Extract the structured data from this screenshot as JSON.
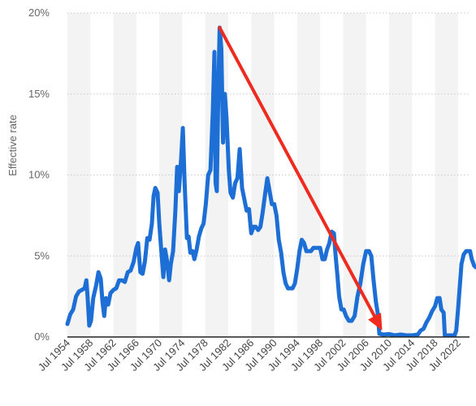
{
  "chart_data": {
    "type": "line",
    "title": "",
    "xlabel": "",
    "ylabel": "Effective rate",
    "ylim": [
      0,
      20
    ],
    "xlim": [
      1954.5,
      2024.5
    ],
    "y_ticks": [
      0,
      5,
      10,
      15,
      20
    ],
    "y_tick_labels": [
      "0%",
      "5%",
      "10%",
      "15%",
      "20%"
    ],
    "x_ticks": [
      1954.5,
      1958.5,
      1962.5,
      1966.5,
      1970.5,
      1974.5,
      1978.5,
      1982.5,
      1986.5,
      1990.5,
      1994.5,
      1998.5,
      2002.5,
      2006.5,
      2010.5,
      2014.5,
      2018.5,
      2022.5
    ],
    "x_tick_labels": [
      "Jul 1954",
      "Jul 1958",
      "Jul 1962",
      "Jul 1966",
      "Jul 1970",
      "Jul 1974",
      "Jul 1978",
      "Jul 1982",
      "Jul 1986",
      "Jul 1990",
      "Jul 1994",
      "Jul 1998",
      "Jul 2002",
      "Jul 2006",
      "Jul 2010",
      "Jul 2014",
      "Jul 2018",
      "Jul 2022"
    ],
    "grid": "horizontal dotted",
    "background": "alternating vertical bands",
    "series": [
      {
        "color": "#1d6fd6",
        "points": [
          [
            1954.5,
            0.8
          ],
          [
            1955.0,
            1.4
          ],
          [
            1955.5,
            1.7
          ],
          [
            1956.0,
            2.5
          ],
          [
            1956.5,
            2.8
          ],
          [
            1957.0,
            2.9
          ],
          [
            1957.5,
            3.0
          ],
          [
            1957.8,
            3.5
          ],
          [
            1958.0,
            2.5
          ],
          [
            1958.3,
            0.7
          ],
          [
            1958.6,
            1.0
          ],
          [
            1959.0,
            2.4
          ],
          [
            1959.5,
            3.2
          ],
          [
            1959.9,
            4.0
          ],
          [
            1960.3,
            3.6
          ],
          [
            1960.6,
            2.2
          ],
          [
            1960.9,
            1.3
          ],
          [
            1961.2,
            2.4
          ],
          [
            1961.6,
            2.0
          ],
          [
            1962.0,
            2.7
          ],
          [
            1962.5,
            2.9
          ],
          [
            1963.0,
            3.0
          ],
          [
            1963.5,
            3.5
          ],
          [
            1964.0,
            3.5
          ],
          [
            1964.5,
            3.4
          ],
          [
            1965.0,
            4.0
          ],
          [
            1965.5,
            4.1
          ],
          [
            1966.0,
            4.6
          ],
          [
            1966.5,
            5.5
          ],
          [
            1966.8,
            5.8
          ],
          [
            1967.2,
            4.0
          ],
          [
            1967.6,
            3.9
          ],
          [
            1968.0,
            4.7
          ],
          [
            1968.4,
            6.1
          ],
          [
            1968.8,
            6.0
          ],
          [
            1969.2,
            7.0
          ],
          [
            1969.5,
            8.7
          ],
          [
            1969.8,
            9.2
          ],
          [
            1970.2,
            8.9
          ],
          [
            1970.5,
            7.0
          ],
          [
            1970.8,
            5.5
          ],
          [
            1971.2,
            3.7
          ],
          [
            1971.5,
            5.4
          ],
          [
            1971.8,
            4.8
          ],
          [
            1972.2,
            3.5
          ],
          [
            1972.5,
            4.5
          ],
          [
            1972.9,
            5.3
          ],
          [
            1973.3,
            7.8
          ],
          [
            1973.6,
            10.5
          ],
          [
            1973.9,
            9.0
          ],
          [
            1974.3,
            11.0
          ],
          [
            1974.6,
            12.9
          ],
          [
            1974.9,
            9.5
          ],
          [
            1975.3,
            6.1
          ],
          [
            1975.6,
            6.2
          ],
          [
            1975.9,
            5.2
          ],
          [
            1976.3,
            5.3
          ],
          [
            1976.6,
            4.8
          ],
          [
            1977.0,
            5.4
          ],
          [
            1977.4,
            6.2
          ],
          [
            1977.8,
            6.7
          ],
          [
            1978.2,
            7.0
          ],
          [
            1978.6,
            8.2
          ],
          [
            1979.0,
            10.0
          ],
          [
            1979.4,
            10.3
          ],
          [
            1979.8,
            13.8
          ],
          [
            1980.1,
            17.6
          ],
          [
            1980.3,
            9.5
          ],
          [
            1980.5,
            9.0
          ],
          [
            1980.8,
            15.8
          ],
          [
            1981.0,
            19.1
          ],
          [
            1981.3,
            17.8
          ],
          [
            1981.6,
            12.0
          ],
          [
            1981.9,
            15.0
          ],
          [
            1982.2,
            13.5
          ],
          [
            1982.6,
            10.3
          ],
          [
            1982.9,
            8.9
          ],
          [
            1983.3,
            8.6
          ],
          [
            1983.7,
            9.5
          ],
          [
            1984.1,
            9.8
          ],
          [
            1984.5,
            11.6
          ],
          [
            1984.9,
            9.2
          ],
          [
            1985.3,
            8.5
          ],
          [
            1985.7,
            7.8
          ],
          [
            1986.1,
            7.9
          ],
          [
            1986.5,
            6.4
          ],
          [
            1986.9,
            6.8
          ],
          [
            1987.3,
            6.8
          ],
          [
            1987.7,
            6.6
          ],
          [
            1988.1,
            6.8
          ],
          [
            1988.5,
            7.7
          ],
          [
            1988.9,
            8.8
          ],
          [
            1989.3,
            9.8
          ],
          [
            1989.7,
            9.0
          ],
          [
            1990.1,
            8.2
          ],
          [
            1990.5,
            8.2
          ],
          [
            1990.9,
            7.5
          ],
          [
            1991.3,
            6.0
          ],
          [
            1991.7,
            5.2
          ],
          [
            1992.1,
            4.0
          ],
          [
            1992.5,
            3.3
          ],
          [
            1992.9,
            3.0
          ],
          [
            1993.3,
            3.0
          ],
          [
            1993.7,
            3.0
          ],
          [
            1994.1,
            3.3
          ],
          [
            1994.5,
            4.2
          ],
          [
            1994.9,
            5.3
          ],
          [
            1995.3,
            6.0
          ],
          [
            1995.7,
            5.8
          ],
          [
            1996.1,
            5.3
          ],
          [
            1996.5,
            5.3
          ],
          [
            1996.9,
            5.3
          ],
          [
            1997.3,
            5.5
          ],
          [
            1997.7,
            5.5
          ],
          [
            1998.1,
            5.5
          ],
          [
            1998.5,
            5.5
          ],
          [
            1998.9,
            4.8
          ],
          [
            1999.3,
            4.8
          ],
          [
            1999.7,
            5.4
          ],
          [
            2000.1,
            5.8
          ],
          [
            2000.5,
            6.5
          ],
          [
            2000.9,
            6.4
          ],
          [
            2001.2,
            5.0
          ],
          [
            2001.5,
            3.8
          ],
          [
            2001.8,
            2.5
          ],
          [
            2002.2,
            1.7
          ],
          [
            2002.6,
            1.7
          ],
          [
            2003.0,
            1.3
          ],
          [
            2003.5,
            1.0
          ],
          [
            2004.0,
            1.0
          ],
          [
            2004.5,
            1.3
          ],
          [
            2005.0,
            2.5
          ],
          [
            2005.5,
            3.3
          ],
          [
            2006.0,
            4.5
          ],
          [
            2006.5,
            5.3
          ],
          [
            2007.0,
            5.3
          ],
          [
            2007.4,
            5.0
          ],
          [
            2007.8,
            3.5
          ],
          [
            2008.2,
            2.2
          ],
          [
            2008.5,
            1.5
          ],
          [
            2008.8,
            0.2
          ],
          [
            2009.5,
            0.15
          ],
          [
            2010.5,
            0.18
          ],
          [
            2011.5,
            0.1
          ],
          [
            2012.5,
            0.15
          ],
          [
            2013.5,
            0.1
          ],
          [
            2014.5,
            0.1
          ],
          [
            2015.5,
            0.15
          ],
          [
            2016.0,
            0.4
          ],
          [
            2016.5,
            0.5
          ],
          [
            2017.0,
            0.9
          ],
          [
            2017.5,
            1.2
          ],
          [
            2018.0,
            1.6
          ],
          [
            2018.5,
            1.9
          ],
          [
            2018.9,
            2.4
          ],
          [
            2019.3,
            2.4
          ],
          [
            2019.6,
            1.7
          ],
          [
            2020.0,
            1.5
          ],
          [
            2020.2,
            0.1
          ],
          [
            2021.0,
            0.1
          ],
          [
            2021.9,
            0.1
          ],
          [
            2022.2,
            0.4
          ],
          [
            2022.5,
            1.7
          ],
          [
            2022.8,
            3.1
          ],
          [
            2023.1,
            4.5
          ],
          [
            2023.5,
            5.1
          ],
          [
            2023.9,
            5.3
          ],
          [
            2024.3,
            5.3
          ],
          [
            2024.6,
            5.3
          ],
          [
            2024.9,
            4.8
          ],
          [
            2025.3,
            4.4
          ],
          [
            2025.6,
            4.3
          ]
        ]
      }
    ],
    "annotations": [
      {
        "type": "arrow",
        "color": "#ee2b1e",
        "from": [
          1981.0,
          19.1
        ],
        "to": [
          2009.3,
          0.4
        ]
      }
    ]
  }
}
